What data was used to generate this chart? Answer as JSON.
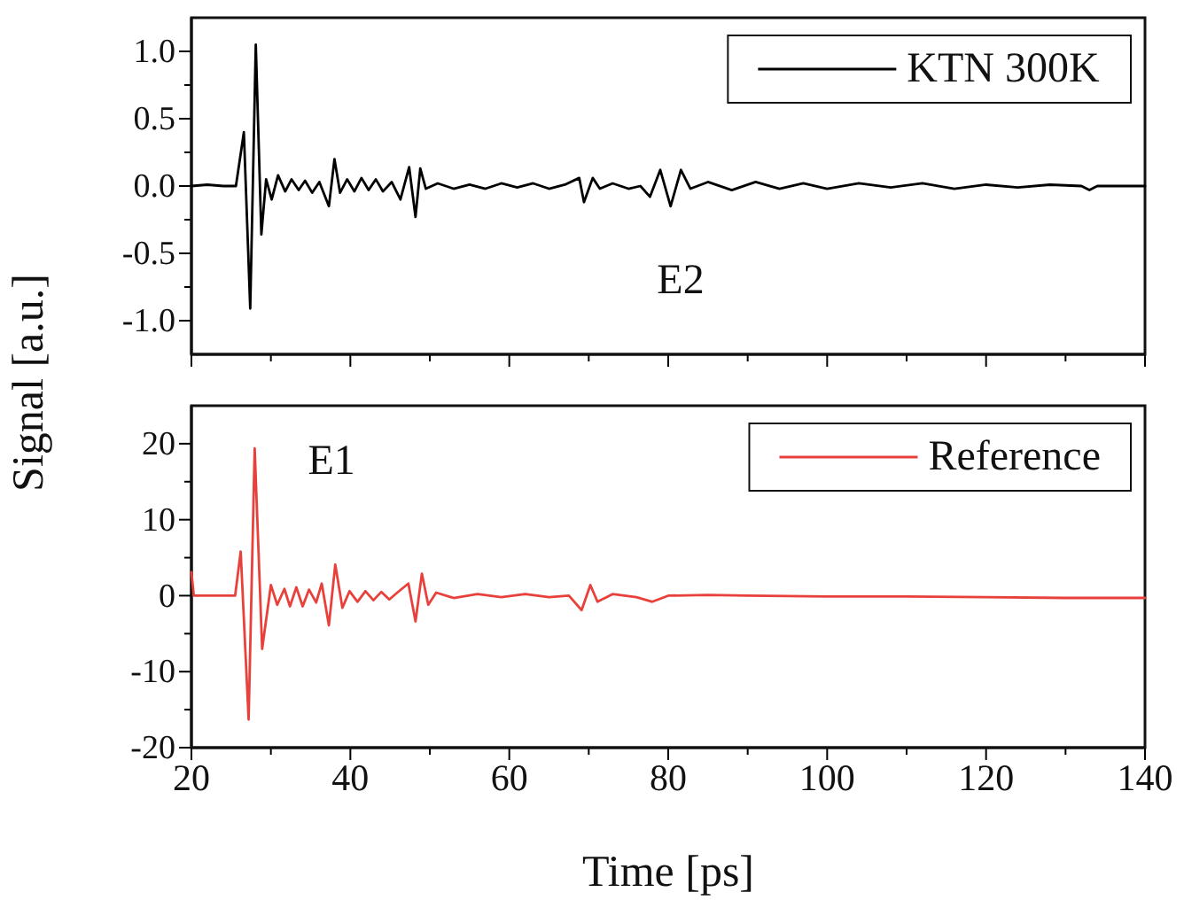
{
  "chart_data": [
    {
      "type": "line",
      "ylabel": "Signal [a.u.]",
      "xlim": [
        20,
        140
      ],
      "xticks": [
        20,
        {
          "value": 30,
          "label": null
        },
        40,
        {
          "value": 50,
          "label": null
        },
        60,
        {
          "value": 70,
          "label": null
        },
        80,
        {
          "value": 90,
          "label": null
        },
        100,
        {
          "value": 110,
          "label": null
        },
        120,
        {
          "value": 130,
          "label": null
        },
        140
      ],
      "ylim": [
        -1.25,
        1.25
      ],
      "yticks": [
        {
          "value": -1,
          "label": "-1.0"
        },
        {
          "value": -0.75,
          "label": null
        },
        {
          "value": -0.5,
          "label": "-0.5"
        },
        {
          "value": -0.25,
          "label": null
        },
        {
          "value": 0,
          "label": "0.0"
        },
        {
          "value": 0.25,
          "label": null
        },
        {
          "value": 0.5,
          "label": "0.5"
        },
        {
          "value": 0.75,
          "label": null
        },
        {
          "value": 1,
          "label": "1.0"
        }
      ],
      "tick_labels": "y",
      "legend": "top right",
      "annotations": [
        "E2"
      ],
      "series": [
        {
          "name": "KTN 300K",
          "color": "#000000",
          "x": [
            20,
            22,
            24,
            25.6,
            26.6,
            27.4,
            28.1,
            28.8,
            29.4,
            30.1,
            30.9,
            31.8,
            32.6,
            33.5,
            34.3,
            35.2,
            36.1,
            37.3,
            38.0,
            38.7,
            39.6,
            40.5,
            41.4,
            42.3,
            43.2,
            44.1,
            45.2,
            46.3,
            47.4,
            48.2,
            48.8,
            49.5,
            51,
            53,
            55,
            57,
            59,
            61,
            63,
            65,
            67,
            68.8,
            69.4,
            70.5,
            71.4,
            73,
            75,
            76.5,
            77.7,
            79.0,
            80.3,
            81.6,
            82.8,
            85,
            88,
            91,
            94,
            97,
            100,
            104,
            108,
            112,
            116,
            120,
            124,
            128,
            132,
            133,
            134,
            137,
            140
          ],
          "values": [
            0,
            0.01,
            0,
            0,
            0.4,
            -0.91,
            1.05,
            -0.36,
            0.05,
            -0.1,
            0.08,
            -0.04,
            0.05,
            -0.03,
            0.04,
            -0.05,
            0.03,
            -0.15,
            0.2,
            -0.05,
            0.05,
            -0.04,
            0.06,
            -0.03,
            0.05,
            -0.04,
            0.03,
            -0.1,
            0.14,
            -0.23,
            0.13,
            -0.02,
            0.02,
            -0.02,
            0.01,
            -0.02,
            0.02,
            -0.01,
            0.02,
            -0.02,
            0.01,
            0.06,
            -0.12,
            0.06,
            -0.02,
            0.02,
            -0.02,
            0,
            -0.08,
            0.12,
            -0.15,
            0.12,
            -0.02,
            0.03,
            -0.03,
            0.03,
            -0.02,
            0.02,
            -0.02,
            0.02,
            -0.01,
            0.02,
            -0.02,
            0.01,
            -0.01,
            0.01,
            0,
            -0.03,
            0,
            0,
            0
          ]
        }
      ]
    },
    {
      "type": "line",
      "xlabel": "Time [ps]",
      "xlim": [
        20,
        140
      ],
      "xticks": [
        20,
        {
          "value": 30,
          "label": null
        },
        40,
        {
          "value": 50,
          "label": null
        },
        60,
        {
          "value": 70,
          "label": null
        },
        80,
        {
          "value": 90,
          "label": null
        },
        100,
        {
          "value": 110,
          "label": null
        },
        120,
        {
          "value": 130,
          "label": null
        },
        140
      ],
      "ylim": [
        -20,
        25
      ],
      "yticks": [
        -20,
        {
          "value": -15,
          "label": null
        },
        -10,
        {
          "value": -5,
          "label": null
        },
        0,
        {
          "value": 5,
          "label": null
        },
        10,
        {
          "value": 15,
          "label": null
        },
        20
      ],
      "legend": "top right",
      "annotations": [
        "E1"
      ],
      "series": [
        {
          "name": "Reference",
          "color": "#e8413c",
          "x": [
            20,
            20.3,
            22,
            24,
            25.5,
            26.2,
            27.2,
            27.96,
            28.9,
            30.0,
            30.8,
            31.7,
            32.4,
            33.2,
            34.0,
            34.8,
            35.7,
            36.4,
            37.3,
            38.1,
            39.0,
            39.9,
            40.9,
            41.9,
            42.9,
            43.9,
            44.9,
            45.9,
            47.3,
            48.2,
            49.0,
            49.8,
            50.8,
            53,
            56,
            59,
            62,
            65,
            67.5,
            69.1,
            70.2,
            71.1,
            73,
            76,
            78,
            80,
            85,
            90,
            100,
            110,
            120,
            130,
            140
          ],
          "values": [
            3.1,
            0,
            0,
            0,
            0,
            5.8,
            -16.3,
            19.4,
            -7.0,
            1.4,
            -1.2,
            0.9,
            -1.4,
            1.1,
            -1.4,
            0.8,
            -0.9,
            1.6,
            -3.9,
            4.1,
            -1.6,
            0.6,
            -0.8,
            0.6,
            -0.6,
            0.5,
            -0.5,
            0.4,
            1.6,
            -3.4,
            2.9,
            -1.2,
            0.4,
            -0.3,
            0.2,
            -0.2,
            0.2,
            -0.2,
            0,
            -1.9,
            1.4,
            -0.8,
            0.2,
            -0.2,
            -0.8,
            0,
            0.1,
            0,
            -0.1,
            -0.1,
            -0.2,
            -0.3,
            -0.3
          ]
        }
      ]
    }
  ]
}
